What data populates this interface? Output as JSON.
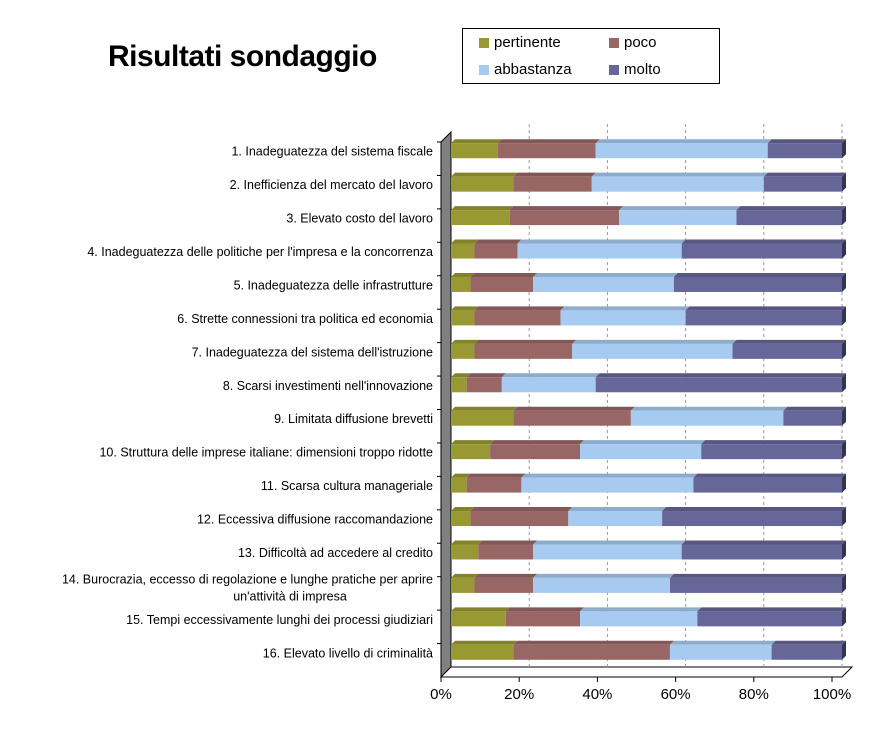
{
  "chart_data": {
    "type": "bar",
    "orientation": "horizontal",
    "stacked": "percent",
    "title": "Risultati sondaggio",
    "categories": [
      "1. Inadeguatezza del sistema fiscale",
      "2. Inefficienza del mercato del lavoro",
      "3. Elevato costo del lavoro",
      "4. Inadeguatezza delle politiche per l'impresa e la concorrenza",
      "5. Inadeguatezza delle infrastrutture",
      "6. Strette connessioni tra politica ed economia",
      "7. Inadeguatezza del sistema dell'istruzione",
      "8. Scarsi investimenti nell'innovazione",
      "9. Limitata diffusione brevetti",
      "10. Struttura delle imprese italiane: dimensioni troppo ridotte",
      "11. Scarsa cultura manageriale",
      "12. Eccessiva diffusione raccomandazione",
      "13. Difficoltà ad accedere al credito",
      "14. Burocrazia, eccesso di regolazione e lunghe pratiche per aprire un'attività di impresa",
      "15. Tempi eccessivamente lunghi dei processi giudiziari",
      "16. Elevato livello di criminalità"
    ],
    "series": [
      {
        "name": "pertinente",
        "color": "#999933",
        "values": [
          12,
          16,
          15,
          6,
          5,
          6,
          6,
          4,
          16,
          10,
          4,
          5,
          7,
          6,
          14,
          16
        ]
      },
      {
        "name": "poco",
        "color": "#996666",
        "values": [
          25,
          20,
          28,
          11,
          16,
          22,
          25,
          9,
          30,
          23,
          14,
          25,
          14,
          15,
          19,
          40
        ]
      },
      {
        "name": "abbastanza",
        "color": "#a6caf0",
        "values": [
          44,
          44,
          30,
          42,
          36,
          32,
          41,
          24,
          39,
          31,
          44,
          24,
          38,
          35,
          30,
          26
        ]
      },
      {
        "name": "molto",
        "color": "#666699",
        "values": [
          19,
          20,
          27,
          41,
          43,
          40,
          28,
          63,
          15,
          36,
          38,
          46,
          41,
          44,
          37,
          18
        ]
      }
    ],
    "x_ticks": [
      "0%",
      "20%",
      "40%",
      "60%",
      "80%",
      "100%"
    ],
    "xlim": [
      0,
      100
    ],
    "grid": "vertical dashed",
    "legend_position": "top-right"
  }
}
